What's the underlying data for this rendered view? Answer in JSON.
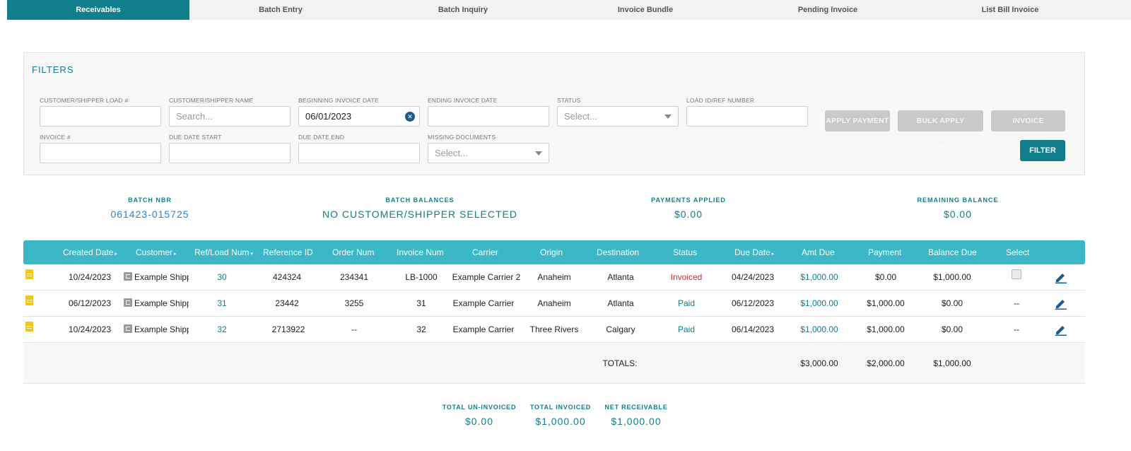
{
  "tabs": [
    "Receivables",
    "Batch Entry",
    "Batch Inquiry",
    "Invoice Bundle",
    "Pending Invoice",
    "List Bill Invoice"
  ],
  "filters": {
    "title": "FILTERS",
    "customer_load": {
      "label": "CUSTOMER/SHIPPER LOAD #",
      "value": ""
    },
    "customer_name": {
      "label": "CUSTOMER/SHIPPER NAME",
      "placeholder": "Search..."
    },
    "begin_date": {
      "label": "BEGINNING INVOICE DATE",
      "value": "06/01/2023"
    },
    "end_date": {
      "label": "ENDING INVOICE DATE",
      "value": ""
    },
    "status": {
      "label": "STATUS",
      "placeholder": "Select..."
    },
    "load_id": {
      "label": "LOAD ID/REF NUMBER",
      "value": ""
    },
    "invoice_num": {
      "label": "INVOICE #",
      "value": ""
    },
    "due_start": {
      "label": "DUE DATE START",
      "value": ""
    },
    "due_end": {
      "label": "DUE DATE END",
      "value": ""
    },
    "missing_docs": {
      "label": "MISSING DOCUMENTS",
      "placeholder": "Select..."
    },
    "buttons": {
      "apply_payment": "APPLY PAYMENT",
      "bulk_apply_payment": "BULK APPLY PAYMENT",
      "invoice_selected": "INVOICE SELECTED",
      "filter": "FILTER"
    }
  },
  "summary": {
    "batch_nbr": {
      "label": "BATCH NBR",
      "value": "061423-015725"
    },
    "batch_balances": {
      "label": "BATCH BALANCES",
      "value": "NO CUSTOMER/SHIPPER SELECTED"
    },
    "payments_applied": {
      "label": "PAYMENTS APPLIED",
      "value": "$0.00"
    },
    "remaining_balance": {
      "label": "REMAINING BALANCE",
      "value": "$0.00"
    }
  },
  "table": {
    "headers": {
      "created_date": "Created Date",
      "customer": "Customer",
      "ref_load": "Ref/Load Num",
      "reference_id": "Reference ID",
      "order_num": "Order Num",
      "invoice_num": "Invoice Num",
      "carrier": "Carrier",
      "origin": "Origin",
      "destination": "Destination",
      "status": "Status",
      "due_date": "Due Date",
      "amt_due": "Amt Due",
      "payment": "Payment",
      "balance_due": "Balance Due",
      "select": "Select"
    },
    "rows": [
      {
        "created": "10/24/2023",
        "customer": "Example Shipper",
        "ref": "30",
        "reference_id": "424324",
        "order": "234341",
        "invoice": "LB-1000",
        "carrier": "Example Carrier 2",
        "origin": "Anaheim",
        "destination": "Atlanta",
        "status": "Invoiced",
        "due": "04/24/2023",
        "amt_due": "$1,000.00",
        "payment": "$0.00",
        "balance": "$1,000.00",
        "select": ""
      },
      {
        "created": "06/12/2023",
        "customer": "Example Shipper",
        "ref": "31",
        "reference_id": "23442",
        "order": "3255",
        "invoice": "31",
        "carrier": "Example Carrier",
        "origin": "Anaheim",
        "destination": "Atlanta",
        "status": "Paid",
        "due": "06/12/2023",
        "amt_due": "$1,000.00",
        "payment": "$1,000.00",
        "balance": "$0.00",
        "select": "--"
      },
      {
        "created": "10/24/2023",
        "customer": "Example Shipper",
        "ref": "32",
        "reference_id": "2713922",
        "order": "--",
        "invoice": "32",
        "carrier": "Example Carrier",
        "origin": "Three Rivers",
        "destination": "Calgary",
        "status": "Paid",
        "due": "06/14/2023",
        "amt_due": "$1,000.00",
        "payment": "$1,000.00",
        "balance": "$0.00",
        "select": "--"
      }
    ],
    "totals": {
      "label": "TOTALS:",
      "amt_due": "$3,000.00",
      "payment": "$2,000.00",
      "balance": "$1,000.00"
    }
  },
  "bottom": {
    "uninvoiced": {
      "label": "TOTAL UN-INVOICED",
      "value": "$0.00"
    },
    "invoiced": {
      "label": "TOTAL INVOICED",
      "value": "$1,000.00"
    },
    "net": {
      "label": "NET RECEIVABLE",
      "value": "$1,000.00"
    }
  },
  "colors": {
    "accent": "#117e8c",
    "header": "#3bb8c8",
    "invoiced": "#d42a2a"
  },
  "icons": {
    "row_doc": "document-icon",
    "customer": "wallet-icon",
    "edit": "pencil-icon",
    "clear": "clear-circle-icon"
  }
}
